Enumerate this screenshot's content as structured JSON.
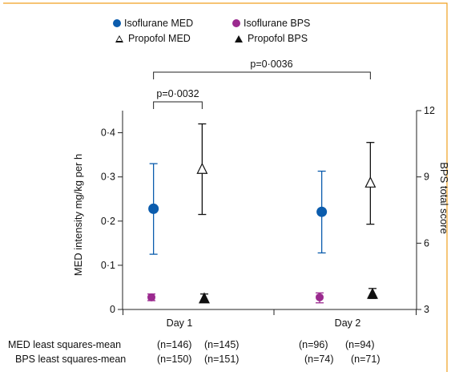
{
  "chart_data": {
    "type": "scatter",
    "categories": [
      "Day 1",
      "Day 2"
    ],
    "ylabel": "MED intensity mg/kg per h",
    "y2label": "BPS total score",
    "ylim": [
      0,
      0.45
    ],
    "y2lim": [
      3,
      12
    ],
    "yticks": [
      "0",
      "0·1",
      "0·2",
      "0·3",
      "0·4"
    ],
    "y2ticks": [
      "3",
      "6",
      "9",
      "12"
    ],
    "legend_position": "top",
    "series": [
      {
        "name": "Isoflurane MED",
        "axis": "left",
        "marker": "filled-circle",
        "color": "#0b5cad",
        "values": [
          0.228,
          0.221
        ],
        "lower": [
          0.125,
          0.128
        ],
        "upper": [
          0.33,
          0.313
        ]
      },
      {
        "name": "Propofol MED",
        "axis": "left",
        "marker": "open-triangle",
        "color": "#111111",
        "values": [
          0.318,
          0.287
        ],
        "lower": [
          0.215,
          0.193
        ],
        "upper": [
          0.42,
          0.378
        ]
      },
      {
        "name": "Isoflurane BPS",
        "axis": "right",
        "marker": "filled-circle",
        "color": "#9b2a8f",
        "values": [
          3.55,
          3.55
        ],
        "lower": [
          3.4,
          3.3
        ],
        "upper": [
          3.7,
          3.75
        ]
      },
      {
        "name": "Propofol BPS",
        "axis": "right",
        "marker": "filled-triangle",
        "color": "#111111",
        "values": [
          3.5,
          3.7
        ],
        "lower": [
          3.35,
          3.5
        ],
        "upper": [
          3.7,
          3.95
        ]
      }
    ],
    "annotations": [
      {
        "text": "p=0·0032",
        "from": [
          0,
          "Isoflurane MED"
        ],
        "to": [
          0,
          "Propofol MED"
        ]
      },
      {
        "text": "p=0·0036",
        "from": [
          0,
          "Isoflurane MED"
        ],
        "to": [
          1,
          "Propofol MED"
        ]
      }
    ],
    "n_rows": [
      {
        "label": "MED least squares-mean",
        "counts": [
          "(n=146)",
          "(n=145)",
          "(n=96)",
          "(n=94)"
        ]
      },
      {
        "label": "BPS least squares-mean",
        "counts": [
          "(n=150)",
          "(n=151)",
          "(n=74)",
          "(n=71)"
        ]
      }
    ]
  }
}
